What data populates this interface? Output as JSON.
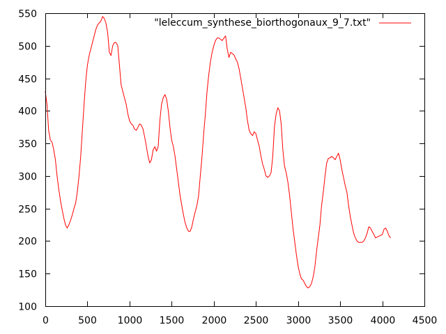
{
  "chart_data": {
    "type": "line",
    "title": "",
    "xlabel": "",
    "ylabel": "",
    "xlim": [
      0,
      4500
    ],
    "ylim": [
      100,
      550
    ],
    "x_ticks": [
      "0",
      "500",
      "1000",
      "1500",
      "2000",
      "2500",
      "3000",
      "3500",
      "4000",
      "4500"
    ],
    "y_ticks": [
      "100",
      "150",
      "200",
      "250",
      "300",
      "350",
      "400",
      "450",
      "500",
      "550"
    ],
    "grid": false,
    "legend_position": "top-right",
    "series": [
      {
        "name": "\"leleccum_synthese_biorthogonaux_9_7.txt\"",
        "color": "#ff0000",
        "points": [
          [
            0,
            430
          ],
          [
            20,
            410
          ],
          [
            40,
            370
          ],
          [
            60,
            355
          ],
          [
            80,
            352
          ],
          [
            100,
            340
          ],
          [
            120,
            325
          ],
          [
            140,
            300
          ],
          [
            160,
            280
          ],
          [
            180,
            262
          ],
          [
            200,
            248
          ],
          [
            220,
            235
          ],
          [
            240,
            225
          ],
          [
            260,
            220
          ],
          [
            280,
            225
          ],
          [
            300,
            232
          ],
          [
            320,
            240
          ],
          [
            340,
            250
          ],
          [
            360,
            258
          ],
          [
            380,
            275
          ],
          [
            400,
            300
          ],
          [
            420,
            330
          ],
          [
            440,
            370
          ],
          [
            460,
            410
          ],
          [
            480,
            445
          ],
          [
            500,
            470
          ],
          [
            520,
            485
          ],
          [
            540,
            495
          ],
          [
            560,
            505
          ],
          [
            580,
            515
          ],
          [
            600,
            525
          ],
          [
            620,
            532
          ],
          [
            640,
            535
          ],
          [
            660,
            538
          ],
          [
            680,
            545
          ],
          [
            700,
            542
          ],
          [
            720,
            535
          ],
          [
            740,
            520
          ],
          [
            760,
            490
          ],
          [
            780,
            485
          ],
          [
            800,
            500
          ],
          [
            820,
            505
          ],
          [
            840,
            505
          ],
          [
            860,
            500
          ],
          [
            880,
            470
          ],
          [
            900,
            440
          ],
          [
            920,
            430
          ],
          [
            940,
            420
          ],
          [
            960,
            410
          ],
          [
            980,
            395
          ],
          [
            1000,
            385
          ],
          [
            1020,
            380
          ],
          [
            1040,
            378
          ],
          [
            1060,
            372
          ],
          [
            1080,
            370
          ],
          [
            1100,
            375
          ],
          [
            1120,
            380
          ],
          [
            1140,
            378
          ],
          [
            1160,
            372
          ],
          [
            1180,
            360
          ],
          [
            1200,
            345
          ],
          [
            1220,
            330
          ],
          [
            1240,
            320
          ],
          [
            1260,
            325
          ],
          [
            1280,
            340
          ],
          [
            1300,
            345
          ],
          [
            1320,
            338
          ],
          [
            1340,
            345
          ],
          [
            1360,
            385
          ],
          [
            1380,
            410
          ],
          [
            1400,
            420
          ],
          [
            1420,
            425
          ],
          [
            1440,
            418
          ],
          [
            1460,
            400
          ],
          [
            1480,
            375
          ],
          [
            1500,
            355
          ],
          [
            1520,
            345
          ],
          [
            1540,
            330
          ],
          [
            1560,
            310
          ],
          [
            1580,
            290
          ],
          [
            1600,
            270
          ],
          [
            1620,
            255
          ],
          [
            1640,
            240
          ],
          [
            1660,
            228
          ],
          [
            1680,
            220
          ],
          [
            1700,
            215
          ],
          [
            1720,
            215
          ],
          [
            1740,
            222
          ],
          [
            1760,
            235
          ],
          [
            1780,
            245
          ],
          [
            1800,
            255
          ],
          [
            1820,
            270
          ],
          [
            1840,
            300
          ],
          [
            1860,
            330
          ],
          [
            1880,
            365
          ],
          [
            1900,
            395
          ],
          [
            1920,
            430
          ],
          [
            1940,
            455
          ],
          [
            1960,
            475
          ],
          [
            1980,
            490
          ],
          [
            2000,
            500
          ],
          [
            2020,
            508
          ],
          [
            2040,
            512
          ],
          [
            2060,
            512
          ],
          [
            2080,
            510
          ],
          [
            2100,
            508
          ],
          [
            2120,
            512
          ],
          [
            2140,
            515
          ],
          [
            2160,
            495
          ],
          [
            2180,
            482
          ],
          [
            2200,
            490
          ],
          [
            2220,
            488
          ],
          [
            2240,
            486
          ],
          [
            2260,
            480
          ],
          [
            2280,
            475
          ],
          [
            2300,
            465
          ],
          [
            2320,
            450
          ],
          [
            2340,
            435
          ],
          [
            2360,
            420
          ],
          [
            2380,
            405
          ],
          [
            2400,
            385
          ],
          [
            2420,
            370
          ],
          [
            2440,
            365
          ],
          [
            2460,
            362
          ],
          [
            2480,
            368
          ],
          [
            2500,
            365
          ],
          [
            2520,
            355
          ],
          [
            2540,
            345
          ],
          [
            2560,
            330
          ],
          [
            2580,
            318
          ],
          [
            2600,
            310
          ],
          [
            2620,
            300
          ],
          [
            2640,
            298
          ],
          [
            2660,
            300
          ],
          [
            2680,
            305
          ],
          [
            2700,
            330
          ],
          [
            2720,
            375
          ],
          [
            2740,
            395
          ],
          [
            2760,
            405
          ],
          [
            2780,
            400
          ],
          [
            2800,
            380
          ],
          [
            2820,
            340
          ],
          [
            2840,
            315
          ],
          [
            2860,
            305
          ],
          [
            2880,
            290
          ],
          [
            2900,
            270
          ],
          [
            2920,
            245
          ],
          [
            2940,
            220
          ],
          [
            2960,
            200
          ],
          [
            2980,
            180
          ],
          [
            3000,
            162
          ],
          [
            3020,
            150
          ],
          [
            3040,
            142
          ],
          [
            3060,
            140
          ],
          [
            3080,
            135
          ],
          [
            3100,
            130
          ],
          [
            3120,
            128
          ],
          [
            3140,
            130
          ],
          [
            3160,
            135
          ],
          [
            3180,
            145
          ],
          [
            3200,
            160
          ],
          [
            3220,
            185
          ],
          [
            3240,
            205
          ],
          [
            3260,
            225
          ],
          [
            3280,
            255
          ],
          [
            3300,
            275
          ],
          [
            3320,
            300
          ],
          [
            3340,
            320
          ],
          [
            3360,
            327
          ],
          [
            3380,
            328
          ],
          [
            3400,
            330
          ],
          [
            3420,
            328
          ],
          [
            3440,
            325
          ],
          [
            3460,
            330
          ],
          [
            3480,
            335
          ],
          [
            3500,
            325
          ],
          [
            3520,
            310
          ],
          [
            3540,
            298
          ],
          [
            3560,
            285
          ],
          [
            3580,
            275
          ],
          [
            3600,
            255
          ],
          [
            3620,
            238
          ],
          [
            3640,
            225
          ],
          [
            3660,
            212
          ],
          [
            3680,
            205
          ],
          [
            3700,
            200
          ],
          [
            3720,
            198
          ],
          [
            3740,
            198
          ],
          [
            3760,
            198
          ],
          [
            3780,
            200
          ],
          [
            3800,
            205
          ],
          [
            3820,
            212
          ],
          [
            3840,
            222
          ],
          [
            3860,
            220
          ],
          [
            3880,
            215
          ],
          [
            3900,
            210
          ],
          [
            3920,
            205
          ],
          [
            4000,
            210
          ],
          [
            4020,
            218
          ],
          [
            4040,
            220
          ],
          [
            4060,
            215
          ],
          [
            4080,
            208
          ],
          [
            4100,
            205
          ]
        ]
      }
    ]
  }
}
